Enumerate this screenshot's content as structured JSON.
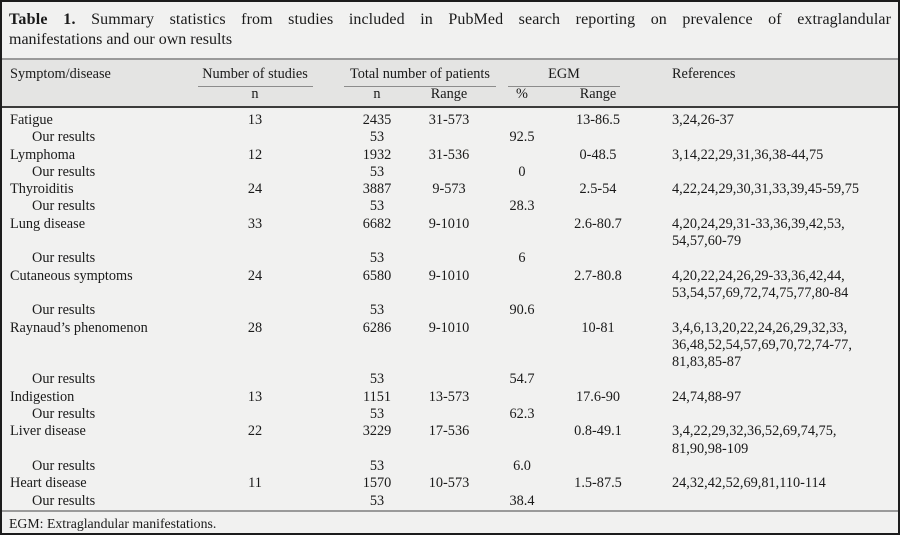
{
  "title": {
    "label": "Table 1.",
    "line1_rest": "Summary statistics from studies included in PubMed search reporting on prevalence of extraglandular",
    "line2": "manifestations and our own results"
  },
  "header": {
    "symptom": "Symptom/disease",
    "studies_group": "Number of studies",
    "patients_group": "Total number of patients",
    "egm_group": "EGM",
    "references": "References",
    "sub": {
      "studies_n": "n",
      "patients_n": "n",
      "patients_range": "Range",
      "egm_pct": "%",
      "egm_range": "Range"
    }
  },
  "rows": [
    {
      "symptom": "Fatigue",
      "indent": false,
      "studies_n": "13",
      "patients_n": "2435",
      "patients_range": "31-573",
      "egm_pct": "",
      "egm_range": "13-86.5",
      "refs": [
        "3,24,26-37"
      ]
    },
    {
      "symptom": "Our results",
      "indent": true,
      "studies_n": "",
      "patients_n": "53",
      "patients_range": "",
      "egm_pct": "92.5",
      "egm_range": "",
      "refs": []
    },
    {
      "symptom": "Lymphoma",
      "indent": false,
      "studies_n": "12",
      "patients_n": "1932",
      "patients_range": "31-536",
      "egm_pct": "",
      "egm_range": "0-48.5",
      "refs": [
        "3,14,22,29,31,36,38-44,75"
      ]
    },
    {
      "symptom": "Our results",
      "indent": true,
      "studies_n": "",
      "patients_n": "53",
      "patients_range": "",
      "egm_pct": "0",
      "egm_range": "",
      "refs": []
    },
    {
      "symptom": "Thyroiditis",
      "indent": false,
      "studies_n": "24",
      "patients_n": "3887",
      "patients_range": "9-573",
      "egm_pct": "",
      "egm_range": "2.5-54",
      "refs": [
        "4,22,24,29,30,31,33,39,45-59,75"
      ]
    },
    {
      "symptom": "Our results",
      "indent": true,
      "studies_n": "",
      "patients_n": "53",
      "patients_range": "",
      "egm_pct": "28.3",
      "egm_range": "",
      "refs": []
    },
    {
      "symptom": "Lung disease",
      "indent": false,
      "studies_n": "33",
      "patients_n": "6682",
      "patients_range": "9-1010",
      "egm_pct": "",
      "egm_range": "2.6-80.7",
      "refs": [
        "4,20,24,29,31-33,36,39,42,53,",
        "54,57,60-79"
      ]
    },
    {
      "symptom": "Our results",
      "indent": true,
      "studies_n": "",
      "patients_n": "53",
      "patients_range": "",
      "egm_pct": "6",
      "egm_range": "",
      "refs": []
    },
    {
      "symptom": "Cutaneous symptoms",
      "indent": false,
      "studies_n": "24",
      "patients_n": "6580",
      "patients_range": "9-1010",
      "egm_pct": "",
      "egm_range": "2.7-80.8",
      "refs": [
        "4,20,22,24,26,29-33,36,42,44,",
        "53,54,57,69,72,74,75,77,80-84"
      ]
    },
    {
      "symptom": "Our results",
      "indent": true,
      "studies_n": "",
      "patients_n": "53",
      "patients_range": "",
      "egm_pct": "90.6",
      "egm_range": "",
      "refs": []
    },
    {
      "symptom": "Raynaud’s phenomenon",
      "indent": false,
      "studies_n": "28",
      "patients_n": "6286",
      "patients_range": "9-1010",
      "egm_pct": "",
      "egm_range": "10-81",
      "refs": [
        "3,4,6,13,20,22,24,26,29,32,33,",
        "36,48,52,54,57,69,70,72,74-77,",
        "81,83,85-87"
      ]
    },
    {
      "symptom": "Our results",
      "indent": true,
      "studies_n": "",
      "patients_n": "53",
      "patients_range": "",
      "egm_pct": "54.7",
      "egm_range": "",
      "refs": []
    },
    {
      "symptom": "Indigestion",
      "indent": false,
      "studies_n": "13",
      "patients_n": "1151",
      "patients_range": "13-573",
      "egm_pct": "",
      "egm_range": "17.6-90",
      "refs": [
        "24,74,88-97"
      ]
    },
    {
      "symptom": "Our results",
      "indent": true,
      "studies_n": "",
      "patients_n": "53",
      "patients_range": "",
      "egm_pct": "62.3",
      "egm_range": "",
      "refs": []
    },
    {
      "symptom": "Liver disease",
      "indent": false,
      "studies_n": "22",
      "patients_n": "3229",
      "patients_range": "17-536",
      "egm_pct": "",
      "egm_range": "0.8-49.1",
      "refs": [
        "3,4,22,29,32,36,52,69,74,75,",
        "81,90,98-109"
      ]
    },
    {
      "symptom": "Our results",
      "indent": true,
      "studies_n": "",
      "patients_n": "53",
      "patients_range": "",
      "egm_pct": "6.0",
      "egm_range": "",
      "refs": []
    },
    {
      "symptom": "Heart disease",
      "indent": false,
      "studies_n": "11",
      "patients_n": "1570",
      "patients_range": "10-573",
      "egm_pct": "",
      "egm_range": "1.5-87.5",
      "refs": [
        "24,32,42,52,69,81,110-114"
      ]
    },
    {
      "symptom": "Our results",
      "indent": true,
      "studies_n": "",
      "patients_n": "53",
      "patients_range": "",
      "egm_pct": "38.4",
      "egm_range": "",
      "refs": []
    }
  ],
  "footnote": "EGM: Extraglandular manifestations.",
  "colors": {
    "background": "#f1f1f0",
    "header_band": "#e4e4e3",
    "border": "#1c1c1c",
    "rule_light": "#9a9a9a",
    "rule_dark": "#3b3b3b",
    "text": "#1a1a1a"
  }
}
